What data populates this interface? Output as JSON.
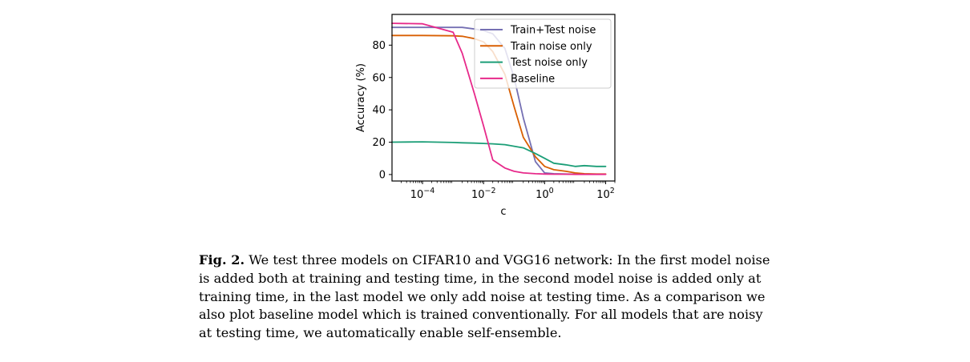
{
  "chart_data": {
    "type": "line",
    "xlabel": "c",
    "ylabel": "Accuracy (%)",
    "xscale": "log",
    "xlim": [
      1e-05,
      200
    ],
    "ylim": [
      -4,
      99
    ],
    "x_ticks": [
      {
        "value": 0.0001,
        "base": "10",
        "exp": "−4"
      },
      {
        "value": 0.01,
        "base": "10",
        "exp": "−2"
      },
      {
        "value": 1,
        "base": "10",
        "exp": "0"
      },
      {
        "value": 100,
        "base": "10",
        "exp": "2"
      }
    ],
    "y_ticks": [
      0,
      20,
      40,
      60,
      80
    ],
    "legend_position": "top-right",
    "x": [
      1e-05,
      0.0001,
      0.001,
      0.002,
      0.005,
      0.01,
      0.02,
      0.05,
      0.1,
      0.2,
      0.5,
      1,
      2,
      5,
      10,
      20,
      50,
      100
    ],
    "series": [
      {
        "name": "Train+Test noise",
        "color": "#7570b3",
        "values": [
          91,
          91,
          91,
          91,
          90,
          89,
          87,
          78,
          60,
          35,
          8,
          1,
          0.5,
          0.3,
          0.2,
          0.2,
          0.2,
          0.2
        ]
      },
      {
        "name": "Train noise only",
        "color": "#d95f02",
        "values": [
          86,
          86,
          85.8,
          85.5,
          84,
          82,
          76,
          62,
          42,
          23,
          11,
          5,
          3,
          2,
          1,
          0.5,
          0.3,
          0.3
        ]
      },
      {
        "name": "Test noise only",
        "color": "#1b9e77",
        "values": [
          20,
          20.2,
          19.8,
          19.6,
          19.4,
          19.2,
          19,
          18.5,
          17.5,
          16.5,
          13,
          10,
          7,
          6,
          5,
          5.5,
          5,
          5
        ]
      },
      {
        "name": "Baseline",
        "color": "#e7298a",
        "values": [
          93.5,
          93.2,
          88,
          75,
          50,
          30,
          9,
          4,
          2,
          1,
          0.5,
          0.3,
          0.2,
          0.2,
          0.1,
          0.1,
          0.1,
          0.1
        ]
      }
    ]
  },
  "caption": {
    "label": "Fig. 2.",
    "text": " We test three models on CIFAR10 and VGG16 network: In the first model noise is added both at training and testing time, in the second model noise is added only at training time, in the last model we only add noise at testing time. As a comparison we also plot baseline model which is trained conventionally. For all models that are noisy at testing time, we automatically enable self-ensemble."
  }
}
